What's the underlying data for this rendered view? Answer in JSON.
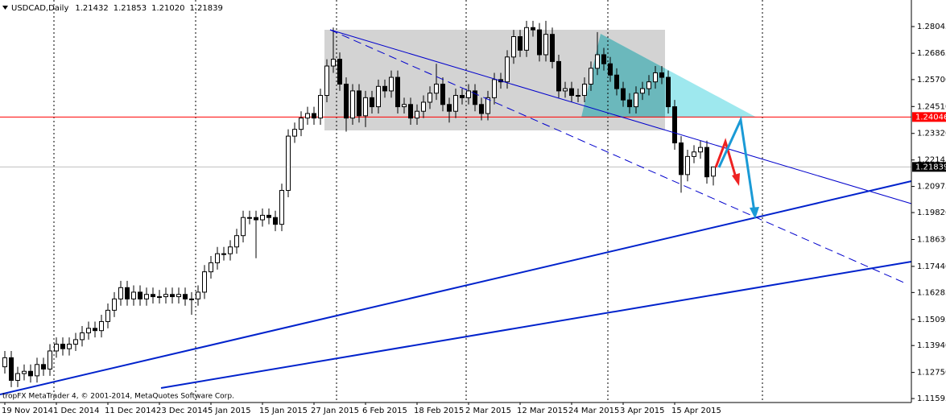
{
  "chart_data": {
    "type": "candlestick",
    "title": "USDCAD,Daily",
    "ohlc_labels": [
      "1.21432",
      "1.21853",
      "1.21020",
      "1.21839"
    ],
    "footer": "tropFX MetaTrader 4, © 2001-2014, MetaQuotes Software Corp.",
    "categories": [
      "19 Nov 2014",
      null,
      null,
      null,
      null,
      null,
      null,
      null,
      "1 Dec 2014",
      null,
      null,
      null,
      null,
      null,
      null,
      null,
      "11 Dec 2014",
      null,
      null,
      null,
      null,
      null,
      null,
      null,
      "23 Dec 2014",
      null,
      null,
      null,
      null,
      null,
      null,
      null,
      "5 Jan 2015",
      null,
      null,
      null,
      null,
      null,
      null,
      null,
      "15 Jan 2015",
      null,
      null,
      null,
      null,
      null,
      null,
      null,
      "27 Jan 2015",
      null,
      null,
      null,
      null,
      null,
      null,
      null,
      "6 Feb 2015",
      null,
      null,
      null,
      null,
      null,
      null,
      null,
      "18 Feb 2015",
      null,
      null,
      null,
      null,
      null,
      null,
      null,
      "2 Mar 2015",
      null,
      null,
      null,
      null,
      null,
      null,
      null,
      "12 Mar 2015",
      null,
      null,
      null,
      null,
      null,
      null,
      null,
      "24 Mar 2015",
      null,
      null,
      null,
      null,
      null,
      null,
      null,
      "3 Apr 2015",
      null,
      null,
      null,
      null,
      null,
      null,
      null,
      "15 Apr 2015",
      null,
      null,
      null,
      null,
      null,
      null
    ],
    "open": [
      1.13,
      1.134,
      1.124,
      1.127,
      1.128,
      1.126,
      1.131,
      1.129,
      1.137,
      1.14,
      1.138,
      1.14,
      1.142,
      1.145,
      1.147,
      1.146,
      1.15,
      1.155,
      1.16,
      1.165,
      1.16,
      1.163,
      1.16,
      1.162,
      1.161,
      1.161,
      1.162,
      1.161,
      1.162,
      1.16,
      1.16,
      1.163,
      1.172,
      1.176,
      1.18,
      1.18,
      1.183,
      1.188,
      1.196,
      1.196,
      1.195,
      1.197,
      1.196,
      1.193,
      1.208,
      1.232,
      1.235,
      1.24,
      1.242,
      1.24,
      1.25,
      1.263,
      1.266,
      1.255,
      1.24,
      1.252,
      1.241,
      1.249,
      1.245,
      1.254,
      1.252,
      1.258,
      1.245,
      1.246,
      1.24,
      1.243,
      1.247,
      1.251,
      1.255,
      1.246,
      1.243,
      1.25,
      1.249,
      1.252,
      1.246,
      1.242,
      1.249,
      1.257,
      1.256,
      1.267,
      1.276,
      1.27,
      1.28,
      1.279,
      1.268,
      1.277,
      1.265,
      1.252,
      1.253,
      1.25,
      1.25,
      1.255,
      1.262,
      1.268,
      1.264,
      1.259,
      1.253,
      1.248,
      1.245,
      1.251,
      1.253,
      1.256,
      1.26,
      1.258,
      1.245,
      1.229,
      1.215,
      1.223,
      1.225,
      1.227,
      1.21432
    ],
    "high": [
      1.137,
      1.137,
      1.13,
      1.131,
      1.131,
      1.134,
      1.134,
      1.14,
      1.143,
      1.143,
      1.143,
      1.145,
      1.148,
      1.15,
      1.15,
      1.153,
      1.158,
      1.163,
      1.168,
      1.168,
      1.166,
      1.166,
      1.165,
      1.165,
      1.164,
      1.165,
      1.165,
      1.165,
      1.165,
      1.163,
      1.166,
      1.175,
      1.179,
      1.183,
      1.183,
      1.186,
      1.191,
      1.199,
      1.199,
      1.199,
      1.2,
      1.2,
      1.199,
      1.211,
      1.235,
      1.238,
      1.243,
      1.245,
      1.245,
      1.253,
      1.266,
      1.28,
      1.269,
      1.258,
      1.255,
      1.255,
      1.252,
      1.252,
      1.257,
      1.257,
      1.261,
      1.261,
      1.249,
      1.249,
      1.246,
      1.25,
      1.254,
      1.264,
      1.258,
      1.249,
      1.253,
      1.253,
      1.255,
      1.255,
      1.249,
      1.252,
      1.26,
      1.26,
      1.27,
      1.279,
      1.279,
      1.283,
      1.283,
      1.282,
      1.283,
      1.28,
      1.268,
      1.256,
      1.256,
      1.253,
      1.258,
      1.265,
      1.278,
      1.271,
      1.267,
      1.262,
      1.256,
      1.251,
      1.254,
      1.256,
      1.259,
      1.263,
      1.263,
      1.261,
      1.248,
      1.232,
      1.226,
      1.228,
      1.23,
      1.23,
      1.21853
    ],
    "low": [
      1.127,
      1.121,
      1.121,
      1.124,
      1.123,
      1.123,
      1.126,
      1.126,
      1.134,
      1.135,
      1.135,
      1.137,
      1.139,
      1.142,
      1.143,
      1.143,
      1.147,
      1.152,
      1.157,
      1.157,
      1.157,
      1.157,
      1.157,
      1.158,
      1.158,
      1.158,
      1.158,
      1.158,
      1.157,
      1.153,
      1.157,
      1.16,
      1.169,
      1.173,
      1.177,
      1.177,
      1.18,
      1.185,
      1.193,
      1.178,
      1.192,
      1.193,
      1.19,
      1.19,
      1.205,
      1.229,
      1.232,
      1.237,
      1.237,
      1.237,
      1.247,
      1.26,
      1.252,
      1.234,
      1.237,
      1.238,
      1.236,
      1.242,
      1.242,
      1.249,
      1.249,
      1.242,
      1.242,
      1.237,
      1.237,
      1.24,
      1.244,
      1.248,
      1.243,
      1.238,
      1.24,
      1.246,
      1.246,
      1.243,
      1.239,
      1.239,
      1.246,
      1.253,
      1.253,
      1.264,
      1.267,
      1.267,
      1.276,
      1.265,
      1.265,
      1.262,
      1.249,
      1.249,
      1.247,
      1.247,
      1.247,
      1.252,
      1.259,
      1.261,
      1.256,
      1.25,
      1.245,
      1.242,
      1.242,
      1.248,
      1.25,
      1.253,
      1.255,
      1.242,
      1.226,
      1.207,
      1.212,
      1.22,
      1.222,
      1.211,
      1.2102
    ],
    "close": [
      1.134,
      1.124,
      1.127,
      1.128,
      1.126,
      1.131,
      1.129,
      1.137,
      1.14,
      1.138,
      1.14,
      1.142,
      1.145,
      1.147,
      1.146,
      1.15,
      1.155,
      1.16,
      1.165,
      1.16,
      1.163,
      1.16,
      1.162,
      1.161,
      1.161,
      1.162,
      1.161,
      1.162,
      1.16,
      1.16,
      1.163,
      1.172,
      1.176,
      1.18,
      1.18,
      1.183,
      1.188,
      1.196,
      1.196,
      1.195,
      1.197,
      1.196,
      1.193,
      1.208,
      1.232,
      1.235,
      1.24,
      1.242,
      1.24,
      1.25,
      1.263,
      1.266,
      1.255,
      1.24,
      1.252,
      1.241,
      1.249,
      1.245,
      1.254,
      1.252,
      1.258,
      1.245,
      1.246,
      1.24,
      1.243,
      1.247,
      1.251,
      1.255,
      1.246,
      1.243,
      1.25,
      1.249,
      1.252,
      1.246,
      1.242,
      1.249,
      1.257,
      1.256,
      1.267,
      1.276,
      1.27,
      1.28,
      1.279,
      1.268,
      1.277,
      1.265,
      1.252,
      1.253,
      1.25,
      1.25,
      1.255,
      1.262,
      1.268,
      1.264,
      1.259,
      1.253,
      1.248,
      1.245,
      1.251,
      1.253,
      1.256,
      1.26,
      1.258,
      1.245,
      1.229,
      1.215,
      1.223,
      1.225,
      1.227,
      1.214,
      1.21839
    ],
    "colors": {
      "up": "#ffffff",
      "down": "#000000",
      "wick": "#000000"
    },
    "ylim": [
      1.1142,
      1.2922
    ],
    "yticks": [
      1.28045,
      1.26865,
      {
        "value": 1.257,
        "label": "1.25700"
      },
      {
        "value": 1.2451,
        "label": "1.24510"
      },
      {
        "value": 1.2332,
        "label": "1.23320"
      },
      1.22145,
      1.20975,
      {
        "value": 1.1982,
        "label": "1.19820"
      },
      {
        "value": 1.1863,
        "label": "1.18630"
      },
      {
        "value": 1.1744,
        "label": "1.17440"
      },
      1.16285,
      1.15095,
      {
        "value": 1.1394,
        "label": "1.13940"
      },
      {
        "value": 1.1275,
        "label": "1.12750"
      },
      1.11595
    ],
    "hlines": [
      {
        "value": 1.24046,
        "color": "#ff0000"
      },
      {
        "value": 1.21839,
        "color": "#c0c0c0",
        "label_color": "#000000"
      }
    ],
    "grid": false
  }
}
